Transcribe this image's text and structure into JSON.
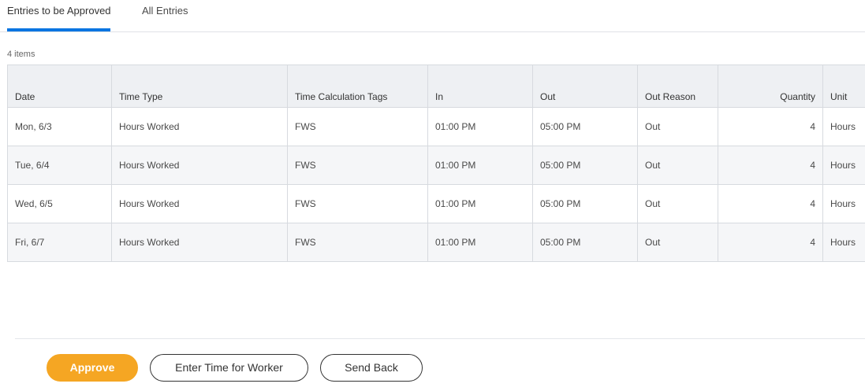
{
  "tabs": [
    {
      "label": "Entries to be Approved",
      "active": true
    },
    {
      "label": "All Entries",
      "active": false
    }
  ],
  "item_count": "4 items",
  "table": {
    "headers": [
      "Date",
      "Time Type",
      "Time Calculation Tags",
      "In",
      "Out",
      "Out Reason",
      "Quantity",
      "Unit"
    ],
    "rows": [
      [
        "Mon, 6/3",
        "Hours Worked",
        "FWS",
        "01:00 PM",
        "05:00 PM",
        "Out",
        "4",
        "Hours"
      ],
      [
        "Tue, 6/4",
        "Hours Worked",
        "FWS",
        "01:00 PM",
        "05:00 PM",
        "Out",
        "4",
        "Hours"
      ],
      [
        "Wed, 6/5",
        "Hours Worked",
        "FWS",
        "01:00 PM",
        "05:00 PM",
        "Out",
        "4",
        "Hours"
      ],
      [
        "Fri, 6/7",
        "Hours Worked",
        "FWS",
        "01:00 PM",
        "05:00 PM",
        "Out",
        "4",
        "Hours"
      ]
    ]
  },
  "buttons": {
    "approve": "Approve",
    "enter_time": "Enter Time for Worker",
    "send_back": "Send Back"
  },
  "colors": {
    "accent": "#0875e1",
    "approve": "#f5a623"
  }
}
